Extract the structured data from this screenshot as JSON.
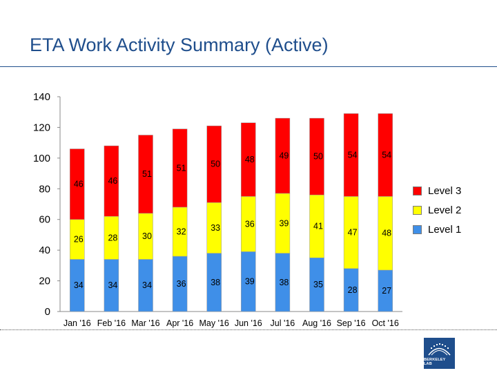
{
  "title": "ETA Work Activity Summary (Active)",
  "logo_text": "BERKELEY LAB",
  "colors": {
    "level3": "#ff0000",
    "level2": "#ffff00",
    "level1": "#3f8fe8",
    "title": "#1f4e8c"
  },
  "chart_data": {
    "type": "bar",
    "stacked": true,
    "title": "",
    "xlabel": "",
    "ylabel": "",
    "ylim": [
      0,
      140
    ],
    "yticks": [
      0,
      20,
      40,
      60,
      80,
      100,
      120,
      140
    ],
    "grid": false,
    "legend_position": "right",
    "categories": [
      "Jan '16",
      "Feb '16",
      "Mar '16",
      "Apr '16",
      "May '16",
      "Jun '16",
      "Jul '16",
      "Aug '16",
      "Sep '16",
      "Oct '16"
    ],
    "series": [
      {
        "name": "Level 1",
        "color": "#3f8fe8",
        "values": [
          34,
          34,
          34,
          36,
          38,
          39,
          38,
          35,
          28,
          27
        ]
      },
      {
        "name": "Level 2",
        "color": "#ffff00",
        "values": [
          26,
          28,
          30,
          32,
          33,
          36,
          39,
          41,
          47,
          48
        ]
      },
      {
        "name": "Level 3",
        "color": "#ff0000",
        "values": [
          46,
          46,
          51,
          51,
          50,
          48,
          49,
          50,
          54,
          54
        ]
      }
    ],
    "legend": [
      "Level 3",
      "Level 2",
      "Level 1"
    ]
  }
}
